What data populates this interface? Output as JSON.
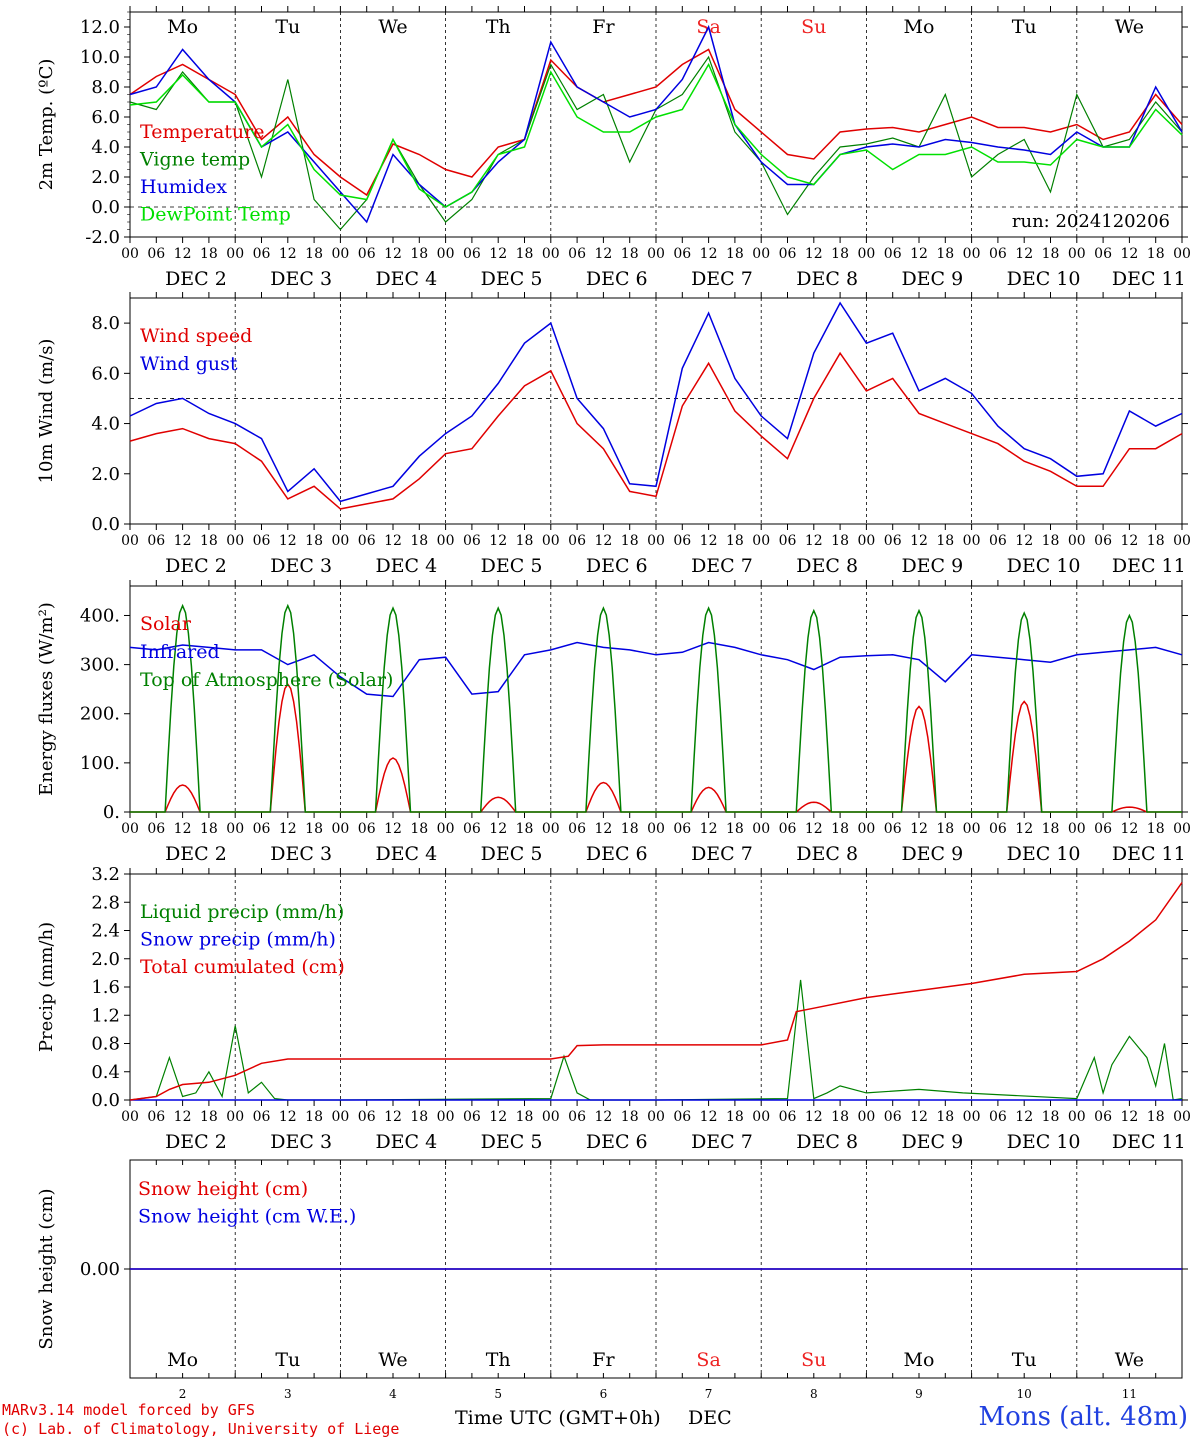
{
  "colors": {
    "red": "#e00000",
    "green": "#008000",
    "blue": "#0000e0",
    "light_green": "#00e000",
    "black": "#000000",
    "red_day": "#ee2222"
  },
  "day_labels": [
    "Mo",
    "Tu",
    "We",
    "Th",
    "Fr",
    "Sa",
    "Su",
    "Mo",
    "Tu",
    "We"
  ],
  "day_label_colors": [
    "black",
    "black",
    "black",
    "black",
    "black",
    "red",
    "red",
    "black",
    "black",
    "black"
  ],
  "hour_ticks": [
    "00",
    "06",
    "12",
    "18"
  ],
  "date_labels": [
    "DEC  2",
    "DEC  3",
    "DEC  4",
    "DEC  5",
    "DEC  6",
    "DEC  7",
    "DEC  8",
    "DEC  9",
    "DEC 10",
    "DEC 11"
  ],
  "bottom_day_numbers": [
    "2",
    "3",
    "4",
    "5",
    "6",
    "7",
    "8",
    "9",
    "10",
    "11"
  ],
  "bottom_axis_title": "Time UTC (GMT+0h)",
  "bottom_axis_month": "DEC",
  "footer": {
    "line1": "MARv3.14 model forced by GFS",
    "line2": "(c) Lab. of Climatology, University of Liege"
  },
  "station": "Mons (alt. 48m)",
  "chart_data": [
    {
      "id": "temp",
      "type": "line",
      "ylabel": "2m Temp. (ºC)",
      "ylim": [
        -2.0,
        13.0
      ],
      "yticks": [
        "-2.0",
        "0.0",
        "2.0",
        "4.0",
        "6.0",
        "8.0",
        "10.0",
        "12.0"
      ],
      "ytick_values": [
        -2,
        0,
        2,
        4,
        6,
        8,
        10,
        12
      ],
      "dashed_ref": 0,
      "annotation": "run: 2024120206",
      "x_hours": [
        0,
        6,
        12,
        18,
        24,
        30,
        36,
        42,
        48,
        54,
        60,
        66,
        72,
        78,
        84,
        90,
        96,
        102,
        108,
        114,
        120,
        126,
        132,
        138,
        144,
        150,
        156,
        162,
        168,
        174,
        180,
        186,
        192,
        198,
        204,
        210,
        216,
        222,
        228,
        234,
        240
      ],
      "series": [
        {
          "name": "Temperature",
          "color": "red",
          "values": [
            7.5,
            8.7,
            9.5,
            8.5,
            7.5,
            4.5,
            6.0,
            3.5,
            2.0,
            0.8,
            4.2,
            3.5,
            2.5,
            2.0,
            4.0,
            4.5,
            9.8,
            8.0,
            7.0,
            7.5,
            8.0,
            9.5,
            10.5,
            6.5,
            5.0,
            3.5,
            3.2,
            5.0,
            5.2,
            5.3,
            5.0,
            5.5,
            6.0,
            5.3,
            5.3,
            5.0,
            5.5,
            4.5,
            5.0,
            7.5,
            5.5
          ]
        },
        {
          "name": "Vigne temp",
          "color": "green",
          "values": [
            7.0,
            6.5,
            9.0,
            7.0,
            7.0,
            2.0,
            8.5,
            0.5,
            -1.5,
            0.5,
            4.5,
            1.5,
            -1.0,
            0.5,
            3.5,
            4.5,
            9.5,
            6.5,
            7.5,
            3.0,
            6.5,
            7.5,
            10.0,
            5.0,
            3.0,
            -0.5,
            2.0,
            4.0,
            4.2,
            4.6,
            4.0,
            7.5,
            2.0,
            3.5,
            4.5,
            1.0,
            7.5,
            4.0,
            4.5,
            7.0,
            5.0
          ]
        },
        {
          "name": "Humidex",
          "color": "blue",
          "values": [
            7.5,
            8.0,
            10.5,
            8.5,
            7.0,
            4.0,
            5.0,
            3.0,
            1.0,
            -1.0,
            3.5,
            1.5,
            0.0,
            1.0,
            3.0,
            4.5,
            11.0,
            8.0,
            7.0,
            6.0,
            6.5,
            8.5,
            12.0,
            5.5,
            3.0,
            1.5,
            1.5,
            3.5,
            4.0,
            4.2,
            4.0,
            4.5,
            4.3,
            4.0,
            3.8,
            3.5,
            5.0,
            4.0,
            4.0,
            8.0,
            5.0
          ]
        },
        {
          "name": "DewPoint Temp",
          "color": "light_green",
          "values": [
            6.8,
            7.0,
            8.8,
            7.0,
            7.0,
            4.0,
            5.5,
            2.5,
            0.8,
            0.5,
            4.5,
            1.2,
            0.0,
            1.0,
            3.5,
            4.0,
            9.0,
            6.0,
            5.0,
            5.0,
            6.0,
            6.5,
            9.5,
            5.5,
            3.5,
            2.0,
            1.5,
            3.5,
            3.8,
            2.5,
            3.5,
            3.5,
            4.0,
            3.0,
            3.0,
            2.8,
            4.5,
            4.0,
            4.0,
            6.5,
            4.8
          ]
        }
      ]
    },
    {
      "id": "wind",
      "type": "line",
      "ylabel": "10m Wind (m/s)",
      "ylim": [
        0.0,
        9.0
      ],
      "yticks": [
        "0.0",
        "2.0",
        "4.0",
        "6.0",
        "8.0"
      ],
      "ytick_values": [
        0,
        2,
        4,
        6,
        8
      ],
      "dashed_ref": 5,
      "x_hours": [
        0,
        6,
        12,
        18,
        24,
        30,
        36,
        42,
        48,
        54,
        60,
        66,
        72,
        78,
        84,
        90,
        96,
        102,
        108,
        114,
        120,
        126,
        132,
        138,
        144,
        150,
        156,
        162,
        168,
        174,
        180,
        186,
        192,
        198,
        204,
        210,
        216,
        222,
        228,
        234,
        240
      ],
      "series": [
        {
          "name": "Wind speed",
          "color": "red",
          "values": [
            3.3,
            3.6,
            3.8,
            3.4,
            3.2,
            2.5,
            1.0,
            1.5,
            0.6,
            0.8,
            1.0,
            1.8,
            2.8,
            3.0,
            4.3,
            5.5,
            6.1,
            4.0,
            3.0,
            1.3,
            1.1,
            4.7,
            6.4,
            4.5,
            3.5,
            2.6,
            5.0,
            6.8,
            5.3,
            5.8,
            4.4,
            4.0,
            3.6,
            3.2,
            2.5,
            2.1,
            1.5,
            1.5,
            3.0,
            3.0,
            3.6
          ]
        },
        {
          "name": "Wind gust",
          "color": "blue",
          "values": [
            4.3,
            4.8,
            5.0,
            4.4,
            4.0,
            3.4,
            1.3,
            2.2,
            0.9,
            1.2,
            1.5,
            2.7,
            3.6,
            4.3,
            5.6,
            7.2,
            8.0,
            5.0,
            3.8,
            1.6,
            1.5,
            6.2,
            8.4,
            5.8,
            4.3,
            3.4,
            6.8,
            8.8,
            7.2,
            7.6,
            5.3,
            5.8,
            5.2,
            3.9,
            3.0,
            2.6,
            1.9,
            2.0,
            4.5,
            3.9,
            4.4
          ]
        }
      ]
    },
    {
      "id": "energy",
      "type": "line",
      "ylabel": "Energy fluxes (W/m²)",
      "ylim": [
        0,
        460
      ],
      "yticks": [
        "0.",
        "100.",
        "200.",
        "300.",
        "400."
      ],
      "ytick_values": [
        0,
        100,
        200,
        300,
        400
      ],
      "x_hours": [
        0,
        6,
        12,
        18,
        24,
        30,
        36,
        42,
        48,
        54,
        60,
        66,
        72,
        78,
        84,
        90,
        96,
        102,
        108,
        114,
        120,
        126,
        132,
        138,
        144,
        150,
        156,
        162,
        168,
        174,
        180,
        186,
        192,
        198,
        204,
        210,
        216,
        222,
        228,
        234,
        240
      ],
      "daily_peak_hour": 12,
      "daily_half_width_hours": 4,
      "series": [
        {
          "name": "Solar",
          "color": "red",
          "daily_peaks": [
            55,
            260,
            110,
            30,
            60,
            50,
            20,
            215,
            225,
            10
          ]
        },
        {
          "name": "Infrared",
          "color": "blue",
          "values": [
            335,
            330,
            340,
            335,
            330,
            330,
            300,
            320,
            275,
            240,
            235,
            310,
            315,
            240,
            245,
            320,
            330,
            345,
            335,
            330,
            320,
            325,
            345,
            335,
            320,
            310,
            290,
            315,
            318,
            320,
            310,
            265,
            320,
            315,
            310,
            305,
            320,
            325,
            330,
            335,
            320
          ]
        },
        {
          "name": "Top of Atmosphere (Solar)",
          "color": "green",
          "daily_peaks": [
            420,
            420,
            415,
            415,
            415,
            415,
            410,
            410,
            405,
            400
          ]
        }
      ]
    },
    {
      "id": "precip",
      "type": "line",
      "ylabel": "Precip (mm/h)",
      "ylim": [
        0.0,
        3.2
      ],
      "yticks": [
        "0.0",
        "0.4",
        "0.8",
        "1.2",
        "1.6",
        "2.0",
        "2.4",
        "2.8",
        "3.2"
      ],
      "ytick_values": [
        0,
        0.4,
        0.8,
        1.2,
        1.6,
        2.0,
        2.4,
        2.8,
        3.2
      ],
      "series": [
        {
          "name": "Liquid precip (mm/h)",
          "color": "green",
          "x_hours": [
            0,
            6,
            9,
            12,
            15,
            18,
            21,
            24,
            27,
            30,
            33,
            36,
            48,
            96,
            99,
            102,
            105,
            120,
            150,
            153,
            156,
            159,
            162,
            168,
            180,
            190,
            216,
            220,
            222,
            224,
            228,
            232,
            234,
            236,
            238,
            240
          ],
          "values": [
            0,
            0.05,
            0.6,
            0.05,
            0.1,
            0.4,
            0.05,
            1.05,
            0.1,
            0.25,
            0.02,
            0,
            0,
            0.02,
            0.62,
            0.1,
            0,
            0,
            0.02,
            1.7,
            0.02,
            0.1,
            0.2,
            0.1,
            0.15,
            0.1,
            0.02,
            0.6,
            0.1,
            0.5,
            0.9,
            0.6,
            0.2,
            0.8,
            0,
            0.02
          ]
        },
        {
          "name": "Snow precip (mm/h)",
          "color": "blue",
          "x_hours": [
            0,
            240
          ],
          "values": [
            0,
            0
          ]
        },
        {
          "name": "Total cumulated (cm)",
          "color": "red",
          "x_hours": [
            0,
            6,
            9,
            12,
            18,
            24,
            30,
            36,
            48,
            72,
            96,
            100,
            102,
            108,
            144,
            150,
            152,
            156,
            168,
            180,
            192,
            204,
            216,
            222,
            228,
            234,
            240
          ],
          "values": [
            0,
            0.05,
            0.15,
            0.22,
            0.25,
            0.35,
            0.52,
            0.58,
            0.58,
            0.58,
            0.58,
            0.62,
            0.77,
            0.78,
            0.78,
            0.85,
            1.25,
            1.3,
            1.45,
            1.55,
            1.65,
            1.78,
            1.82,
            2.0,
            2.25,
            2.55,
            3.08
          ]
        }
      ]
    },
    {
      "id": "snow",
      "type": "line",
      "ylabel": "Snow height (cm)",
      "ylim": [
        -1,
        1
      ],
      "yticks": [
        "0.00"
      ],
      "ytick_values": [
        0
      ],
      "x_hours": [
        0,
        240
      ],
      "series": [
        {
          "name": "Snow height (cm)",
          "color": "red",
          "values": [
            0,
            0
          ]
        },
        {
          "name": "Snow height (cm W.E.)",
          "color": "blue",
          "values": [
            0,
            0
          ]
        }
      ]
    }
  ]
}
